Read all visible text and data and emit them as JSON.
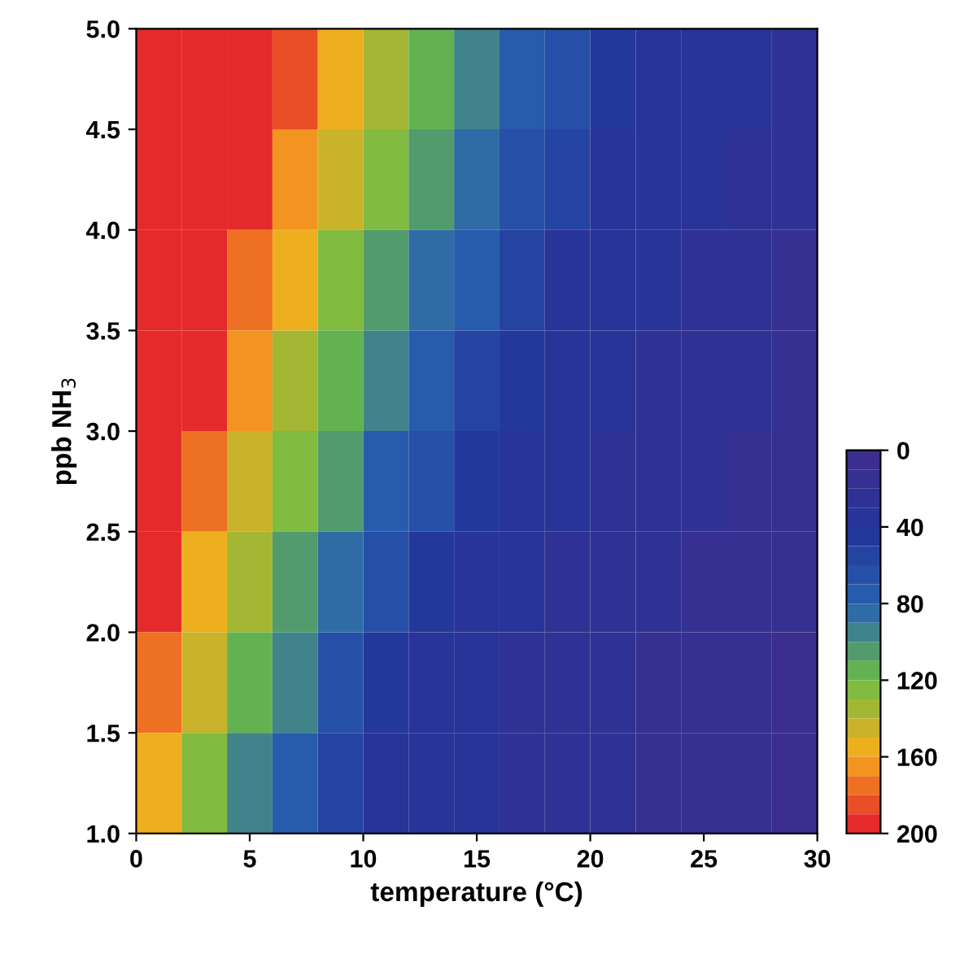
{
  "chart_data": {
    "type": "heatmap",
    "xlabel": "temperature (°C)",
    "ylabel": "ppb NH$_{3}$",
    "xlim": [
      0,
      30
    ],
    "xticks": [
      0,
      5,
      10,
      15,
      20,
      25,
      30
    ],
    "ylim": [
      1,
      5
    ],
    "yticks": [
      {
        "value": 1,
        "label": "1.0"
      },
      {
        "value": 1.5,
        "label": "1.5"
      },
      {
        "value": 2,
        "label": "2.0"
      },
      {
        "value": 2.5,
        "label": "2.5"
      },
      {
        "value": 3,
        "label": "3.0"
      },
      {
        "value": 3.5,
        "label": "3.5"
      },
      {
        "value": 4,
        "label": "4.0"
      },
      {
        "value": 4.5,
        "label": "4.5"
      },
      {
        "value": 5,
        "label": "5.0"
      }
    ],
    "cells": [
      [
        200,
        200,
        200,
        181,
        156,
        134,
        113,
        96,
        79,
        63,
        48,
        38,
        34,
        30,
        26
      ],
      [
        200,
        200,
        193,
        167,
        142,
        120,
        101,
        84,
        67,
        51,
        39,
        35,
        30,
        26,
        22
      ],
      [
        200,
        200,
        179,
        151,
        129,
        107,
        88,
        70,
        53,
        39,
        35,
        31,
        27,
        22,
        19
      ],
      [
        200,
        193,
        163,
        137,
        114,
        94,
        75,
        57,
        40,
        36,
        32,
        28,
        24,
        20,
        16
      ],
      [
        200,
        177,
        146,
        123,
        100,
        79,
        60,
        41,
        36,
        32,
        28,
        24,
        20,
        16,
        13
      ],
      [
        192,
        158,
        132,
        107,
        85,
        64,
        44,
        37,
        33,
        29,
        25,
        21,
        18,
        14,
        11
      ],
      [
        173,
        141,
        116,
        91,
        68,
        46,
        37,
        33,
        29,
        25,
        22,
        18,
        15,
        12,
        9
      ],
      [
        152,
        125,
        99,
        74,
        50,
        38,
        34,
        30,
        27,
        23,
        20,
        17,
        14,
        11,
        8
      ]
    ],
    "clim": [
      0,
      200
    ],
    "cticks": [
      0,
      40,
      80,
      120,
      160,
      200
    ],
    "colors": [
      "#3b2e8e",
      "#23369a",
      "#2863b0",
      "#6bbd45",
      "#f6ae1c",
      "#e42a2a"
    ]
  }
}
